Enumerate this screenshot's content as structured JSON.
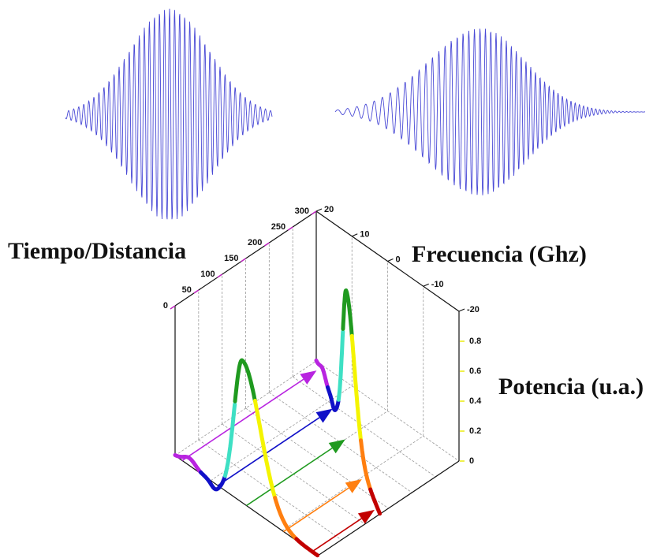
{
  "labels": {
    "time": "Tiempo/Distancia",
    "frequency": "Frecuencia (Ghz)",
    "power": "Potencia (u.a.)"
  },
  "time_ticks": [
    0,
    50,
    100,
    150,
    200,
    250,
    300
  ],
  "frequency_ticks": [
    20,
    10,
    0,
    -10,
    -20
  ],
  "power_ticks": [
    0,
    0.2,
    0.4,
    0.6,
    0.8
  ]
}
